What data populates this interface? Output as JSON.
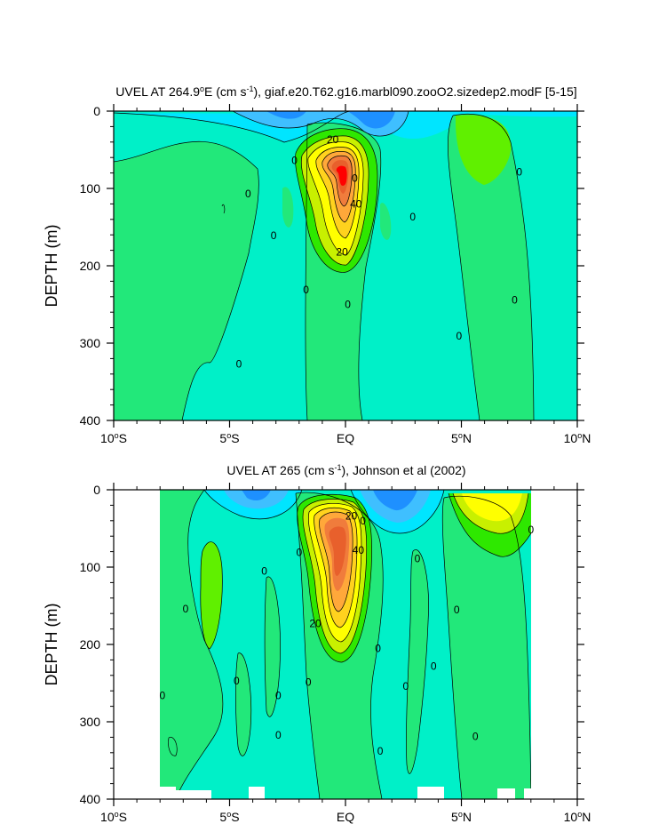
{
  "colors": {
    "c_neg3": "#1e90ff",
    "c_neg2": "#3fbfff",
    "c_neg1": "#00e5ff",
    "c_bg": "#00f0c8",
    "c_pos0": "#22e87a",
    "c_pos1": "#2ee800",
    "c_pos1b": "#60f000",
    "c_pos2": "#c8f000",
    "c_pos3": "#ffff00",
    "c_pos4": "#ffd21e",
    "c_pos5": "#ffa83a",
    "c_pos6": "#f07c3c",
    "c_pos7": "#e8602c",
    "c_max": "#ff0000"
  },
  "chart_data": [
    {
      "type": "contour",
      "title": "UVEL AT 264.9°E (cm s-1), giaf.e20.T62.g16.marbl090.zooO2.sizedep2.modF [5-15]",
      "title_parts": {
        "pre": "UVEL AT 264.9",
        "deg": "o",
        "post1": "E (cm s",
        "sup": "-1",
        "post2": "), giaf.e20.T62.g16.marbl090.zooO2.sizedep2.modF [5-15]"
      },
      "ylabel": "DEPTH (m)",
      "xlim": [
        -10,
        10
      ],
      "ylim": [
        400,
        0
      ],
      "x_ticks": [
        {
          "v": -10,
          "label": "10",
          "hem": "S"
        },
        {
          "v": -5,
          "label": "5",
          "hem": "S"
        },
        {
          "v": 0,
          "label": "EQ",
          "hem": ""
        },
        {
          "v": 5,
          "label": "5",
          "hem": "N"
        },
        {
          "v": 10,
          "label": "10",
          "hem": "N"
        }
      ],
      "y_ticks": [
        0,
        100,
        200,
        300,
        400
      ],
      "contour_labels": [
        {
          "x": -4.2,
          "y": 107,
          "text": "0"
        },
        {
          "x": -3.1,
          "y": 161,
          "text": "0"
        },
        {
          "x": -4.6,
          "y": 327,
          "text": "0"
        },
        {
          "x": -2.2,
          "y": 64,
          "text": "0"
        },
        {
          "x": -1.7,
          "y": 231,
          "text": "0"
        },
        {
          "x": 0.1,
          "y": 250,
          "text": "0"
        },
        {
          "x": 0.4,
          "y": 87,
          "text": "0"
        },
        {
          "x": 2.9,
          "y": 137,
          "text": "0"
        },
        {
          "x": 4.9,
          "y": 291,
          "text": "0"
        },
        {
          "x": 7.5,
          "y": 79,
          "text": "0"
        },
        {
          "x": 7.3,
          "y": 244,
          "text": "0"
        },
        {
          "x": -0.55,
          "y": 37,
          "text": "20"
        },
        {
          "x": 0.45,
          "y": 120,
          "text": "40"
        },
        {
          "x": -0.15,
          "y": 182,
          "text": "20"
        }
      ],
      "core_max_depth_m": 80,
      "core_max_lat": -0.1
    },
    {
      "type": "contour",
      "title": "UVEL AT 265 (cm s-1), Johnson et al (2002)",
      "title_parts": {
        "pre": "UVEL AT 265",
        "deg": "",
        "post1": " (cm s",
        "sup": "-1",
        "post2": "), Johnson et al (2002)"
      },
      "ylabel": "DEPTH (m)",
      "xlim": [
        -10,
        10
      ],
      "ylim": [
        400,
        0
      ],
      "data_x_range": [
        -8,
        8
      ],
      "x_ticks": [
        {
          "v": -10,
          "label": "10",
          "hem": "S"
        },
        {
          "v": -5,
          "label": "5",
          "hem": "S"
        },
        {
          "v": 0,
          "label": "EQ",
          "hem": ""
        },
        {
          "v": 5,
          "label": "5",
          "hem": "N"
        },
        {
          "v": 10,
          "label": "10",
          "hem": "N"
        }
      ],
      "y_ticks": [
        0,
        100,
        200,
        300,
        400
      ],
      "contour_labels": [
        {
          "x": -6.9,
          "y": 154,
          "text": "0"
        },
        {
          "x": -7.9,
          "y": 266,
          "text": "0"
        },
        {
          "x": -4.7,
          "y": 247,
          "text": "0"
        },
        {
          "x": -3.5,
          "y": 105,
          "text": "0"
        },
        {
          "x": -2.9,
          "y": 266,
          "text": "0"
        },
        {
          "x": -2.9,
          "y": 317,
          "text": "0"
        },
        {
          "x": -2.0,
          "y": 81,
          "text": "0"
        },
        {
          "x": -1.6,
          "y": 249,
          "text": "0"
        },
        {
          "x": 0.75,
          "y": 40,
          "text": "0"
        },
        {
          "x": 1.4,
          "y": 205,
          "text": "0"
        },
        {
          "x": 1.5,
          "y": 338,
          "text": "0"
        },
        {
          "x": 3.1,
          "y": 89,
          "text": "0"
        },
        {
          "x": 2.6,
          "y": 254,
          "text": "0"
        },
        {
          "x": 3.8,
          "y": 228,
          "text": "0"
        },
        {
          "x": 4.8,
          "y": 155,
          "text": "0"
        },
        {
          "x": 5.6,
          "y": 319,
          "text": "0"
        },
        {
          "x": 8.0,
          "y": 52,
          "text": "0"
        },
        {
          "x": 0.25,
          "y": 34,
          "text": "20"
        },
        {
          "x": 0.55,
          "y": 78,
          "text": "40"
        },
        {
          "x": -1.3,
          "y": 173,
          "text": "20"
        }
      ],
      "core_max_depth_m": 68,
      "core_max_lat": -0.1
    }
  ]
}
